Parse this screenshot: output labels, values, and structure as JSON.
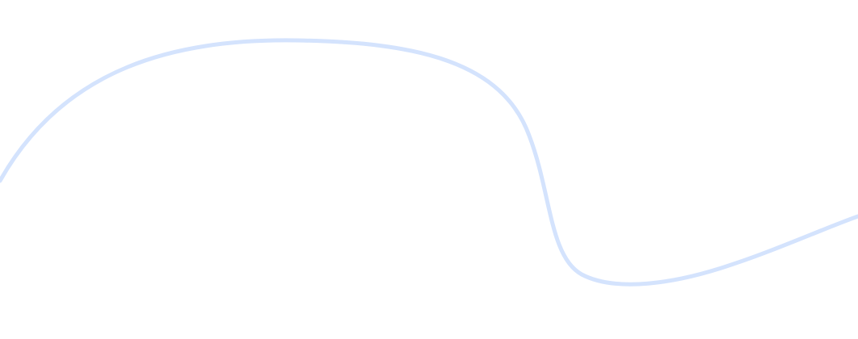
{
  "decoration": {
    "name": "wave-curve",
    "stroke_color": "#d4e3fd",
    "background_color": "#ffffff"
  }
}
